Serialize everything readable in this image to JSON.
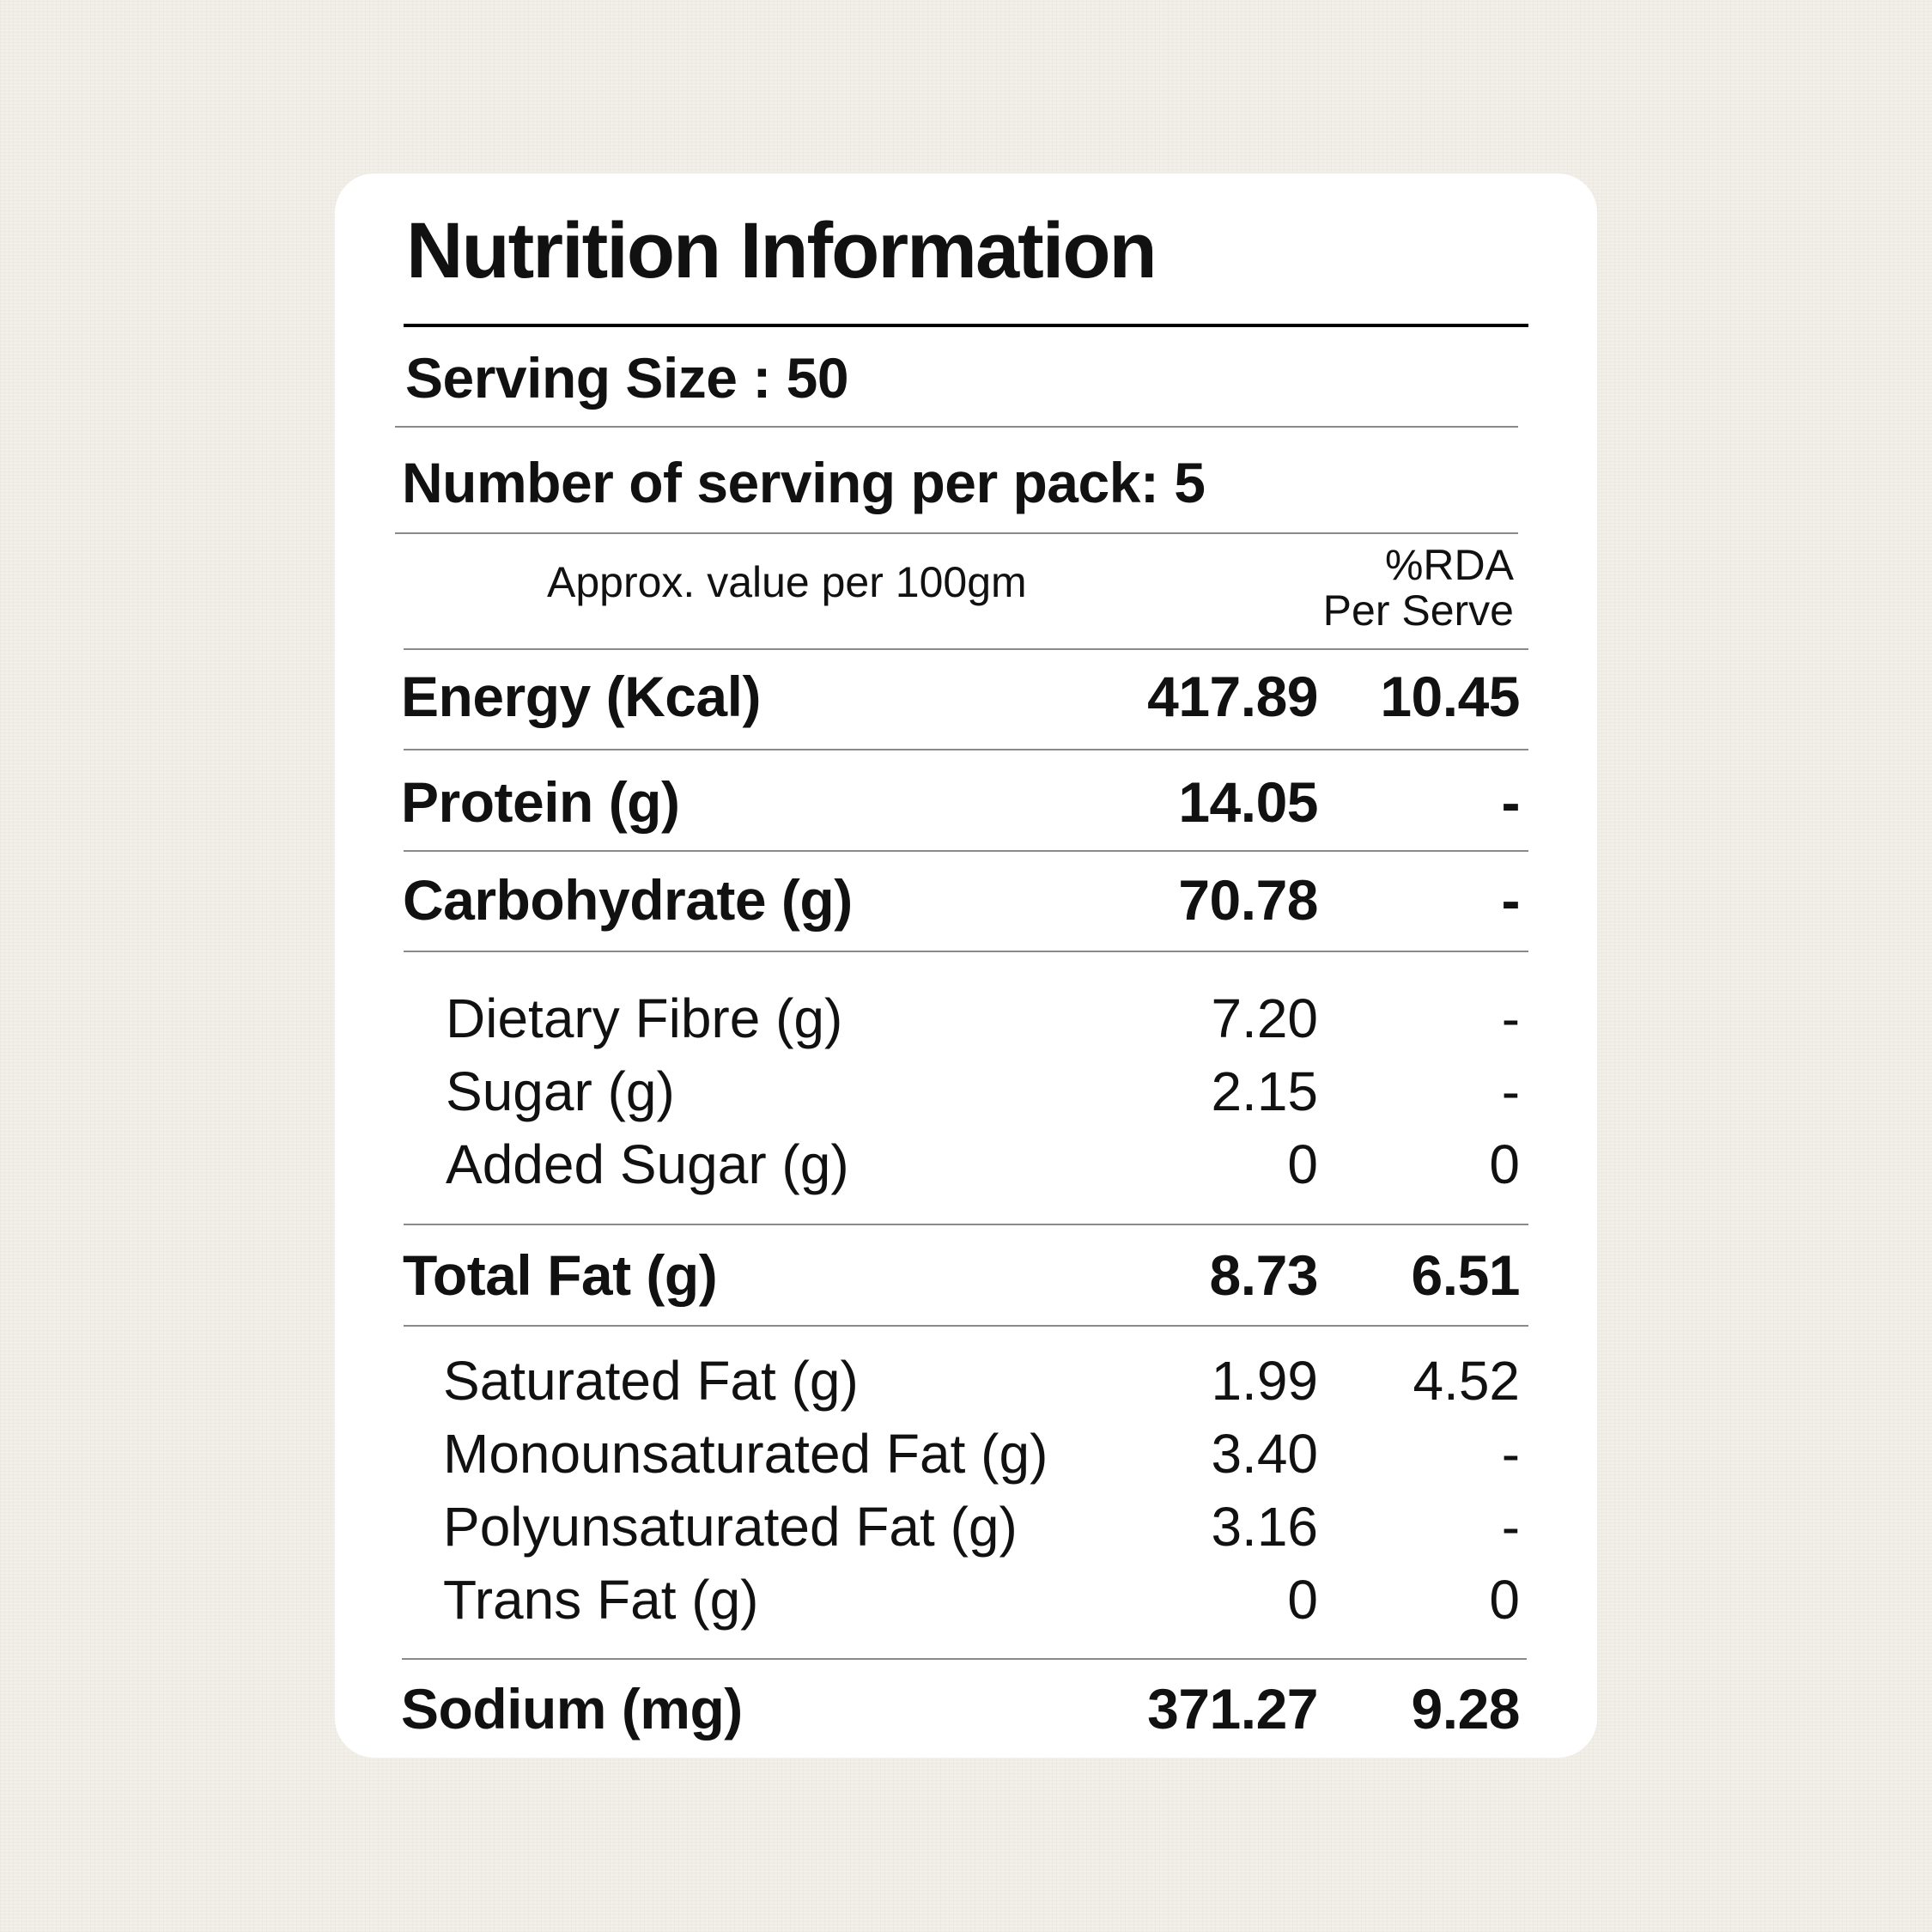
{
  "title": "Nutrition Information",
  "serving_size": "Serving Size : 50",
  "servings_per_pack": "Number of serving per pack: 5",
  "column_headers": {
    "per_100g": "Approx. value per 100gm",
    "rda_line1": "%RDA",
    "rda_line2": "Per Serve"
  },
  "rows": [
    {
      "name": "Energy (Kcal)",
      "value": "417.89",
      "rda": "10.45",
      "style": "bold"
    },
    {
      "name": "Protein (g)",
      "value": "14.05",
      "rda": "-",
      "style": "bold"
    },
    {
      "name": "Carbohydrate (g)",
      "value": "70.78",
      "rda": "-",
      "style": "bold"
    },
    {
      "name": "Dietary Fibre (g)",
      "value": "7.20",
      "rda": "-",
      "style": "sub"
    },
    {
      "name": "Sugar (g)",
      "value": "2.15",
      "rda": "-",
      "style": "sub"
    },
    {
      "name": "Added Sugar (g)",
      "value": "0",
      "rda": "0",
      "style": "sub"
    },
    {
      "name": "Total Fat (g)",
      "value": "8.73",
      "rda": "6.51",
      "style": "bold"
    },
    {
      "name": "Saturated Fat (g)",
      "value": "1.99",
      "rda": "4.52",
      "style": "sub"
    },
    {
      "name": "Monounsaturated Fat (g)",
      "value": "3.40",
      "rda": "-",
      "style": "sub"
    },
    {
      "name": "Polyunsaturated Fat (g)",
      "value": "3.16",
      "rda": "-",
      "style": "sub"
    },
    {
      "name": "Trans Fat (g)",
      "value": "0",
      "rda": "0",
      "style": "sub"
    },
    {
      "name": "Sodium (mg)",
      "value": "371.27",
      "rda": "9.28",
      "style": "bold"
    }
  ]
}
